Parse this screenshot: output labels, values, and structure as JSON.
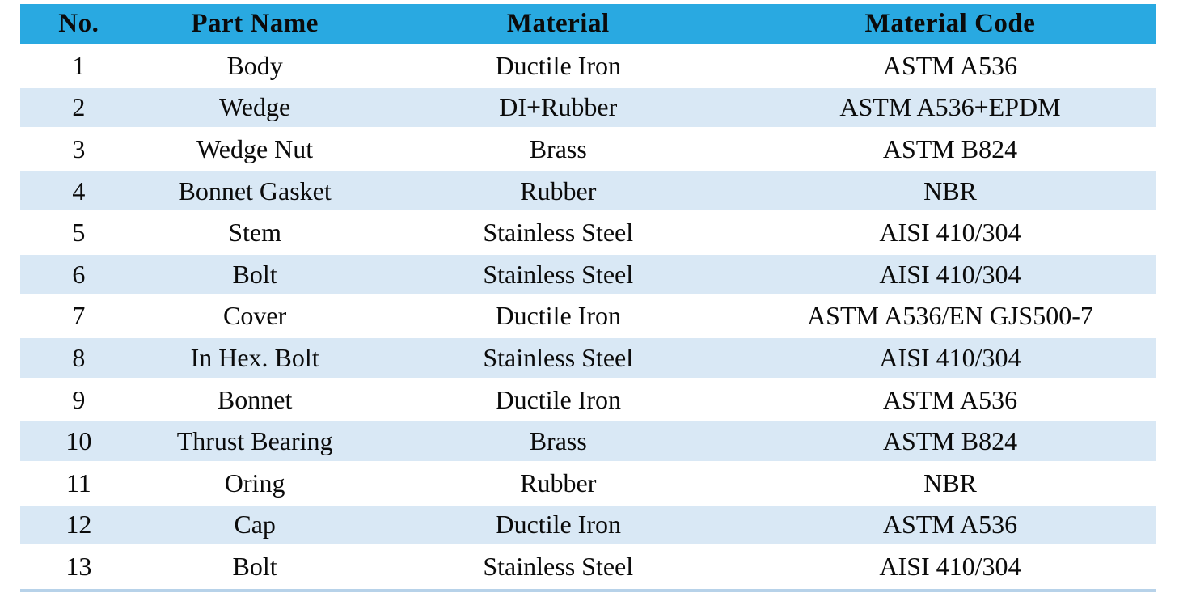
{
  "table": {
    "columns": [
      "No.",
      "Part Name",
      "Material",
      "Material Code"
    ],
    "rows": [
      [
        "1",
        "Body",
        "Ductile Iron",
        "ASTM A536"
      ],
      [
        "2",
        "Wedge",
        "DI+Rubber",
        "ASTM A536+EPDM"
      ],
      [
        "3",
        "Wedge Nut",
        "Brass",
        "ASTM B824"
      ],
      [
        "4",
        "Bonnet Gasket",
        "Rubber",
        "NBR"
      ],
      [
        "5",
        "Stem",
        "Stainless Steel",
        "AISI 410/304"
      ],
      [
        "6",
        "Bolt",
        "Stainless Steel",
        "AISI 410/304"
      ],
      [
        "7",
        "Cover",
        "Ductile Iron",
        "ASTM A536/EN GJS500-7"
      ],
      [
        "8",
        "In Hex. Bolt",
        "Stainless Steel",
        "AISI 410/304"
      ],
      [
        "9",
        "Bonnet",
        "Ductile Iron",
        "ASTM A536"
      ],
      [
        "10",
        "Thrust Bearing",
        "Brass",
        "ASTM B824"
      ],
      [
        "11",
        "Oring",
        "Rubber",
        "NBR"
      ],
      [
        "12",
        "Cap",
        "Ductile Iron",
        "ASTM A536"
      ],
      [
        "13",
        "Bolt",
        "Stainless Steel",
        "AISI 410/304"
      ]
    ],
    "colors": {
      "header_bg": "#29A9E1",
      "row_alt_bg": "#D9E8F5",
      "bottom_border": "#B7D2E9",
      "text": "#0B0B0B"
    }
  }
}
